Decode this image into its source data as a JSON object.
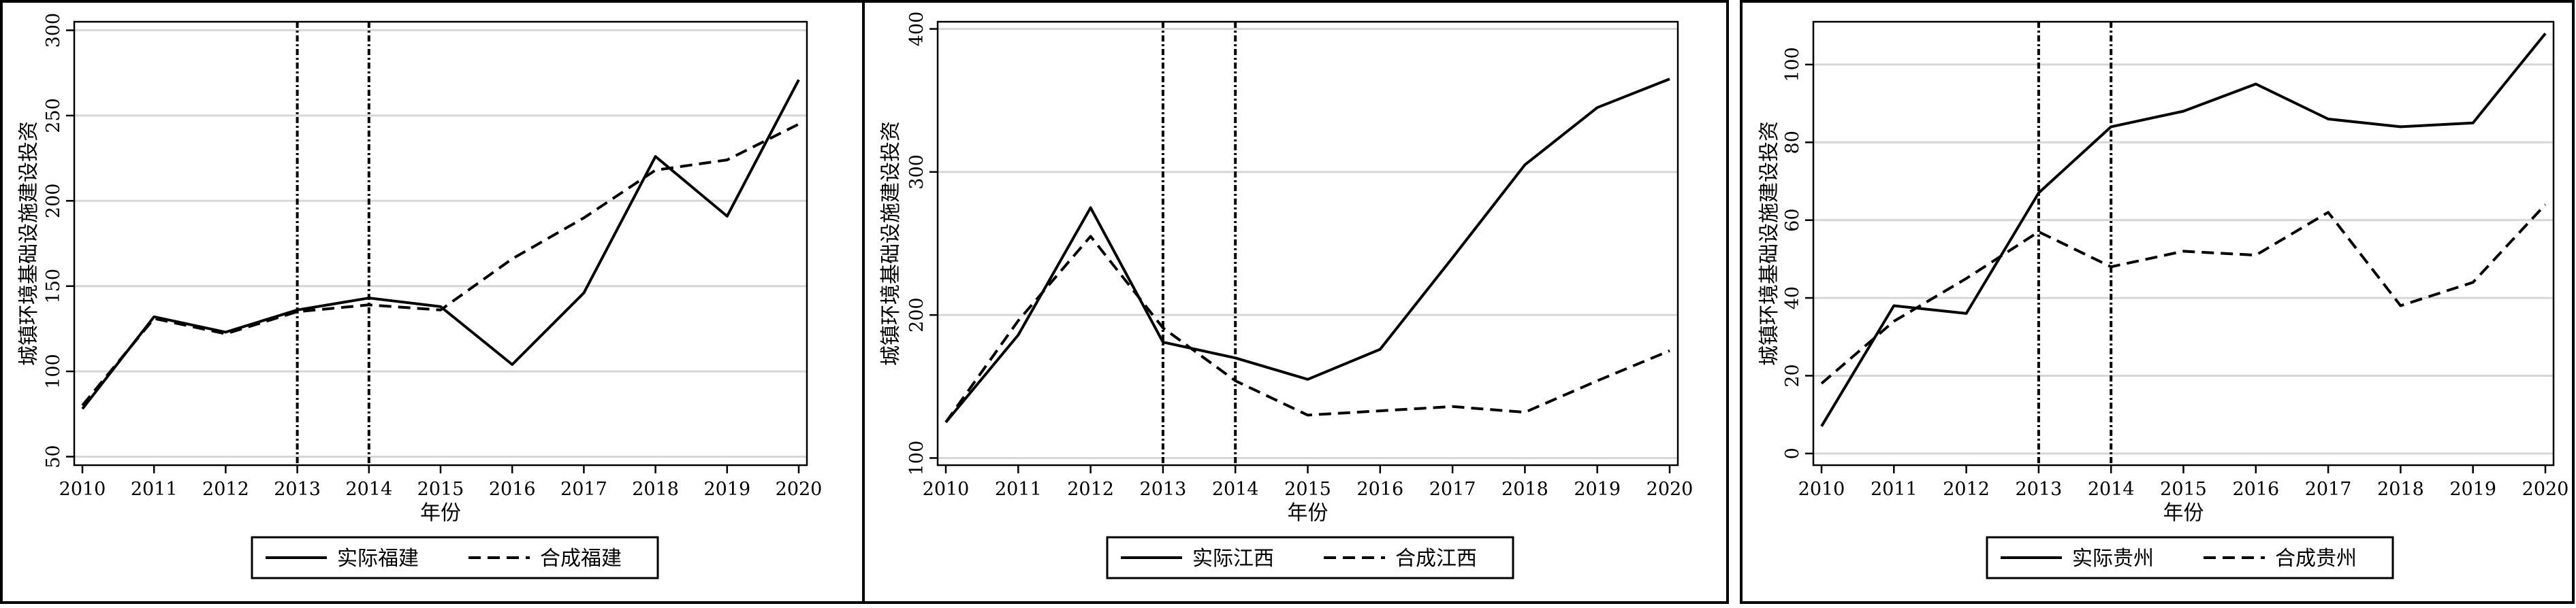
{
  "chart_data": [
    {
      "type": "line",
      "ylabel": "城镇环境基础设施建设投资",
      "xlabel": "年份",
      "x": [
        "2010",
        "2011",
        "2012",
        "2013",
        "2014",
        "2015",
        "2016",
        "2017",
        "2018",
        "2019",
        "2020"
      ],
      "ylim": [
        45,
        305
      ],
      "yticks": [
        50,
        100,
        150,
        200,
        250,
        300
      ],
      "vlines": [
        "2013",
        "2014"
      ],
      "grid": true,
      "legend_position": "bottom",
      "series": [
        {
          "name": "实际福建",
          "style": "solid",
          "values": [
            78,
            132,
            123,
            136,
            143,
            138,
            104,
            146,
            226,
            191,
            271
          ]
        },
        {
          "name": "合成福建",
          "style": "dashed",
          "values": [
            80,
            131,
            122,
            135,
            139,
            136,
            166,
            190,
            218,
            224,
            245
          ]
        }
      ]
    },
    {
      "type": "line",
      "ylabel": "城镇环境基础设施建设投资",
      "xlabel": "年份",
      "x": [
        "2010",
        "2011",
        "2012",
        "2013",
        "2014",
        "2015",
        "2016",
        "2017",
        "2018",
        "2019",
        "2020"
      ],
      "ylim": [
        95,
        405
      ],
      "yticks": [
        100,
        200,
        300,
        400
      ],
      "vlines": [
        "2013",
        "2014"
      ],
      "grid": true,
      "legend_position": "bottom",
      "series": [
        {
          "name": "实际江西",
          "style": "solid",
          "values": [
            125,
            186,
            275,
            181,
            170,
            155,
            176,
            240,
            305,
            345,
            365
          ]
        },
        {
          "name": "合成江西",
          "style": "dashed",
          "values": [
            125,
            196,
            255,
            191,
            154,
            130,
            133,
            136,
            132,
            154,
            175
          ]
        }
      ]
    },
    {
      "type": "line",
      "ylabel": "城镇环境基础设施建设投资",
      "xlabel": "年份",
      "x": [
        "2010",
        "2011",
        "2012",
        "2013",
        "2014",
        "2015",
        "2016",
        "2017",
        "2018",
        "2019",
        "2020"
      ],
      "ylim": [
        -3,
        111
      ],
      "yticks": [
        0,
        20,
        40,
        60,
        80,
        100
      ],
      "vlines": [
        "2013",
        "2014"
      ],
      "grid": true,
      "legend_position": "bottom",
      "series": [
        {
          "name": "实际贵州",
          "style": "solid",
          "values": [
            7,
            38,
            36,
            67,
            84,
            88,
            95,
            86,
            84,
            85,
            108
          ]
        },
        {
          "name": "合成贵州",
          "style": "dashed",
          "values": [
            18,
            34,
            45,
            57,
            48,
            52,
            51,
            62,
            38,
            44,
            64
          ]
        }
      ]
    }
  ]
}
